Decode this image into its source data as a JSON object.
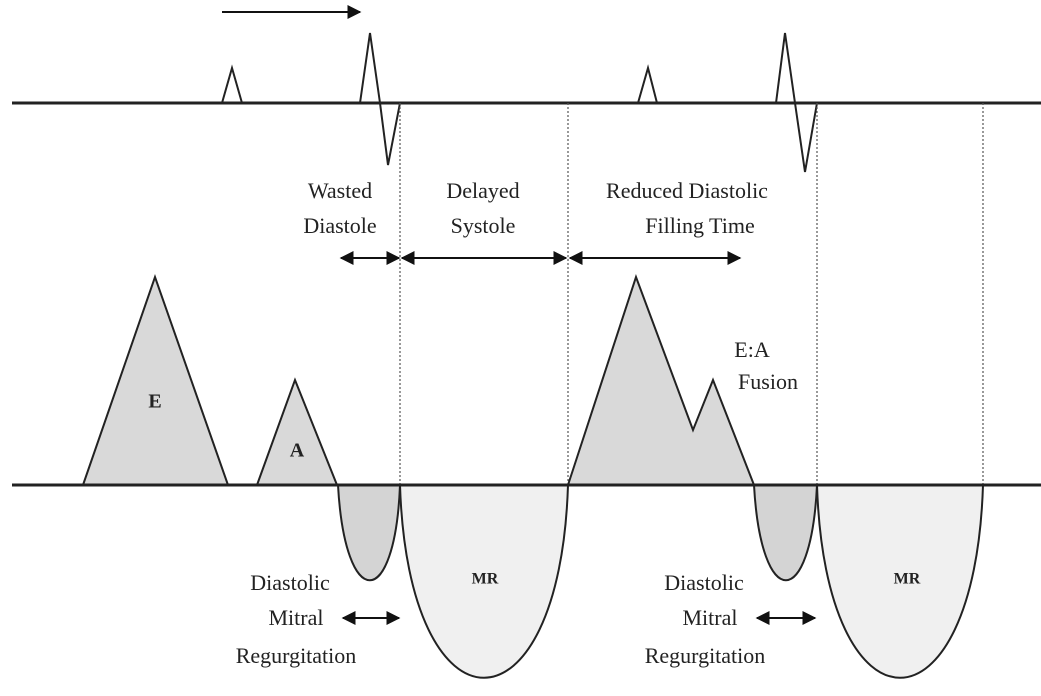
{
  "labels": {
    "wasted_diastole": [
      "Wasted",
      "Diastole"
    ],
    "delayed_systole": [
      "Delayed",
      "Systole"
    ],
    "reduced_filling": [
      "Reduced Diastolic",
      "Filling Time"
    ],
    "e_wave": "E",
    "a_wave": "A",
    "ea_fusion": [
      "E:A",
      "Fusion"
    ],
    "mr_left": "MR",
    "mr_right": "MR",
    "dmr_left": [
      "Diastolic",
      "Mitral",
      "Regurgitation"
    ],
    "dmr_right": [
      "Diastolic",
      "Mitral",
      "Regurgitation"
    ]
  }
}
